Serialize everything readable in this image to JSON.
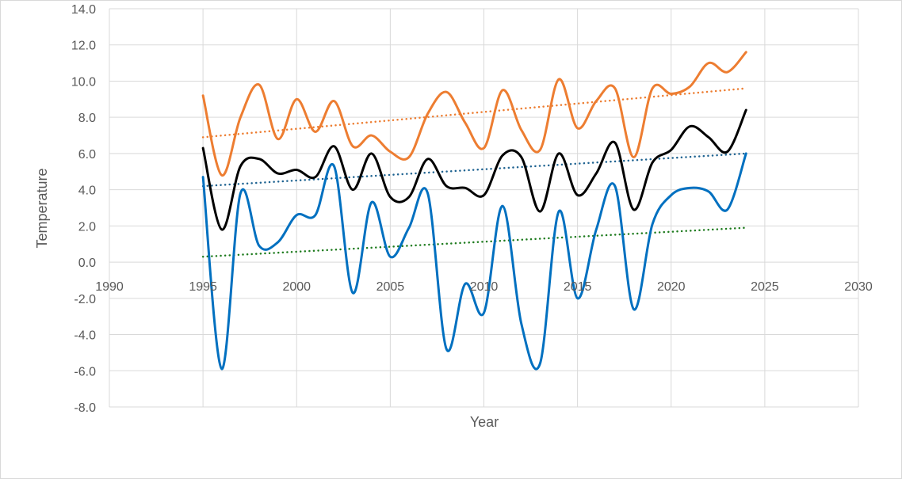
{
  "chart_data": {
    "type": "line",
    "title": "",
    "xlabel": "Year",
    "ylabel": "Temperature",
    "xlim": [
      1990,
      2030
    ],
    "ylim": [
      -8,
      14
    ],
    "x_ticks": [
      "1990",
      "1995",
      "2000",
      "2005",
      "2010",
      "2015",
      "2020",
      "2025",
      "2030"
    ],
    "y_ticks": [
      "14.0",
      "12.0",
      "10.0",
      "8.0",
      "6.0",
      "4.0",
      "2.0",
      "0.0",
      "-2.0",
      "-4.0",
      "-6.0",
      "-8.0"
    ],
    "grid": true,
    "legend": "none",
    "x": [
      1995,
      1996,
      1997,
      1998,
      1999,
      2000,
      2001,
      2002,
      2003,
      2004,
      2005,
      2006,
      2007,
      2008,
      2009,
      2010,
      2011,
      2012,
      2013,
      2014,
      2015,
      2016,
      2017,
      2018,
      2019,
      2020,
      2021,
      2022,
      2023,
      2024
    ],
    "series": [
      {
        "color": "#ed7d31",
        "values": [
          9.2,
          4.8,
          8.0,
          9.8,
          6.8,
          9.0,
          7.2,
          8.9,
          6.4,
          7.0,
          6.1,
          5.8,
          8.2,
          9.4,
          7.7,
          6.3,
          9.5,
          7.3,
          6.2,
          10.1,
          7.4,
          8.9,
          9.6,
          5.8,
          9.6,
          9.3,
          9.7,
          11.0,
          10.5,
          11.6
        ],
        "trend": [
          6.9,
          9.6
        ],
        "trend_color": "#ed7d31"
      },
      {
        "color": "#000000",
        "values": [
          6.3,
          1.8,
          5.3,
          5.7,
          4.9,
          5.1,
          4.7,
          6.4,
          4.0,
          6.0,
          3.6,
          3.6,
          5.7,
          4.2,
          4.1,
          3.7,
          5.9,
          5.8,
          2.8,
          6.0,
          3.7,
          4.9,
          6.6,
          2.9,
          5.5,
          6.2,
          7.5,
          6.9,
          6.1,
          8.4
        ],
        "trend": [
          4.2,
          6.0
        ],
        "trend_color": "#1f6391"
      },
      {
        "color": "#0070c0",
        "values": [
          4.7,
          -5.9,
          3.8,
          0.9,
          1.1,
          2.6,
          2.6,
          5.3,
          -1.7,
          3.3,
          0.3,
          1.9,
          3.8,
          -4.8,
          -1.2,
          -2.8,
          3.1,
          -3.4,
          -5.6,
          2.8,
          -2.0,
          1.8,
          4.2,
          -2.6,
          2.1,
          3.7,
          4.1,
          3.9,
          2.9,
          6.0
        ],
        "trend": [
          0.3,
          1.9
        ],
        "trend_color": "#1e7b1e"
      }
    ]
  }
}
